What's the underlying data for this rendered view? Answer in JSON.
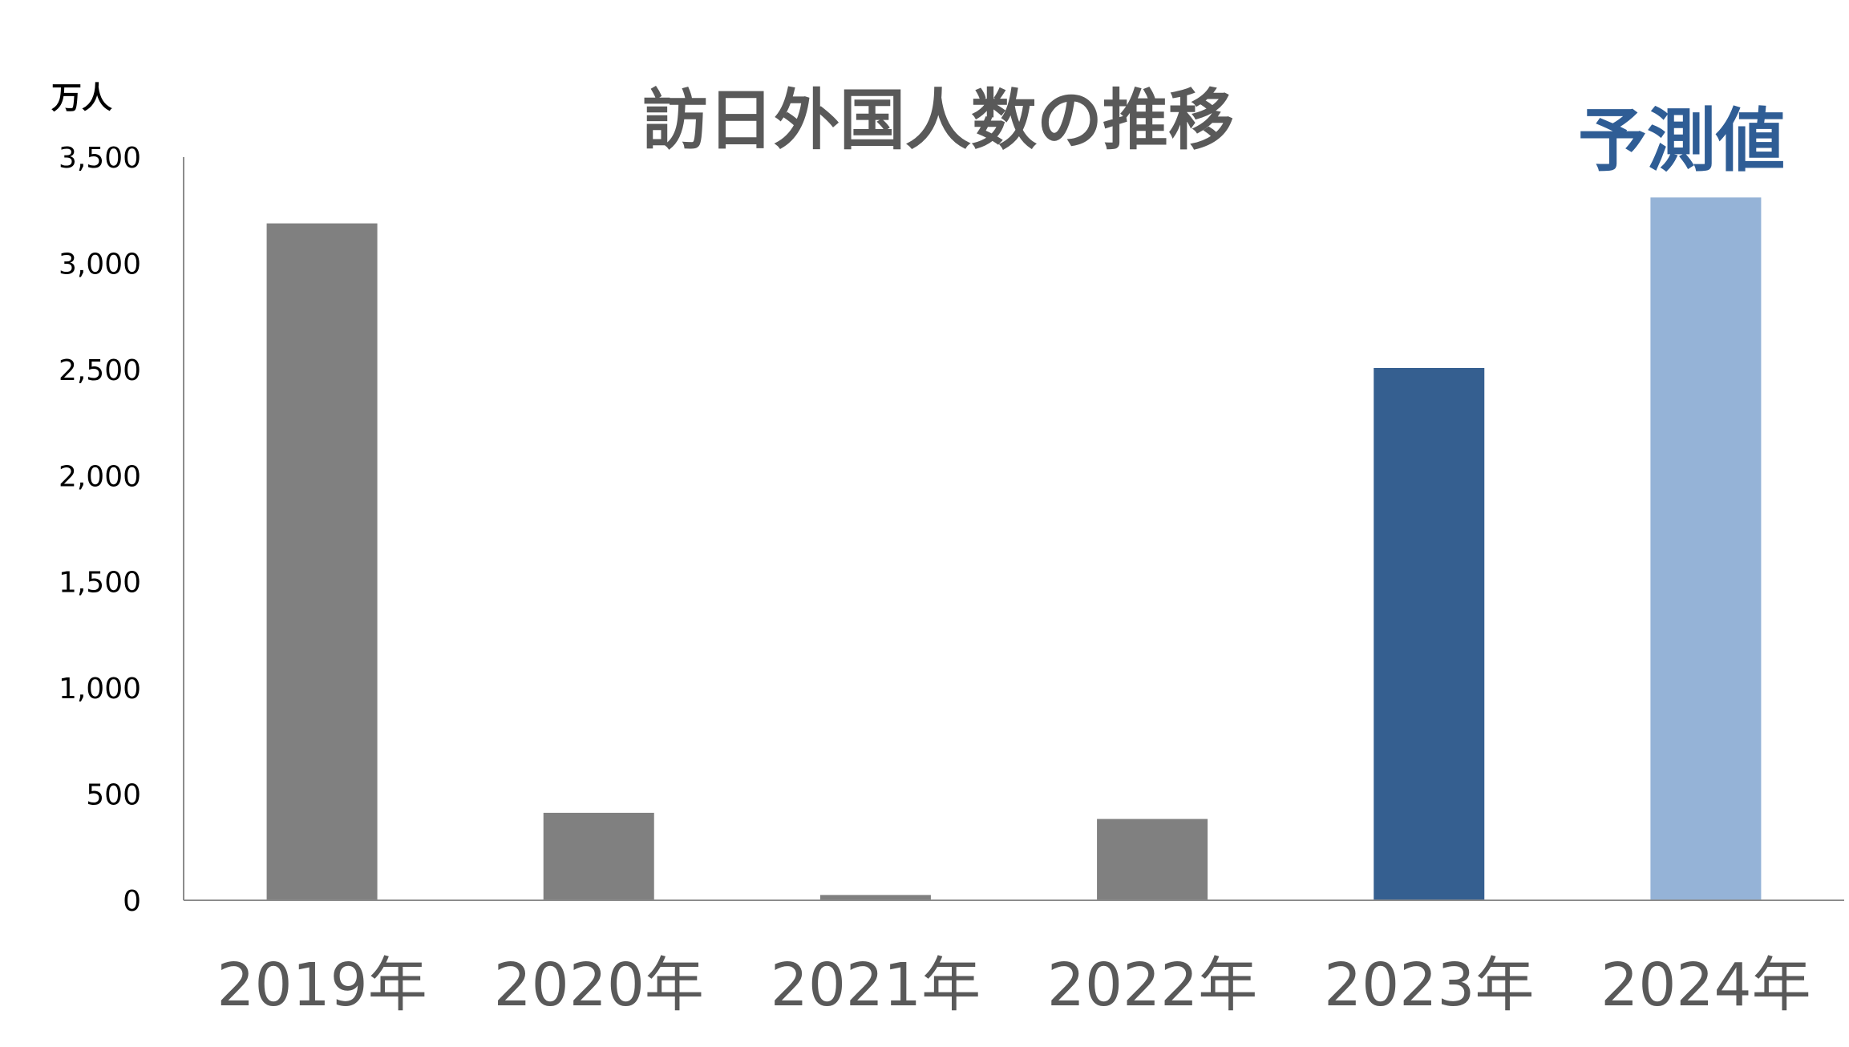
{
  "chart_data": {
    "type": "bar",
    "title": "訪日外国人数の推移",
    "unit_label": "万人",
    "forecast_label": "予測値",
    "categories": [
      "2019年",
      "2020年",
      "2021年",
      "2022年",
      "2023年",
      "2024年"
    ],
    "values": [
      3188,
      412,
      25,
      383,
      2507,
      3310
    ],
    "bar_colors": [
      "#808080",
      "#808080",
      "#808080",
      "#808080",
      "#355F90",
      "#95B3D7"
    ],
    "ylim": [
      0,
      3500
    ],
    "yticks": [
      0,
      500,
      1000,
      1500,
      2000,
      2500,
      3000,
      3500
    ],
    "ytick_labels": [
      "0",
      "500",
      "1,000",
      "1,500",
      "2,000",
      "2,500",
      "3,000",
      "3,500"
    ],
    "grid": false,
    "legend": "none"
  }
}
